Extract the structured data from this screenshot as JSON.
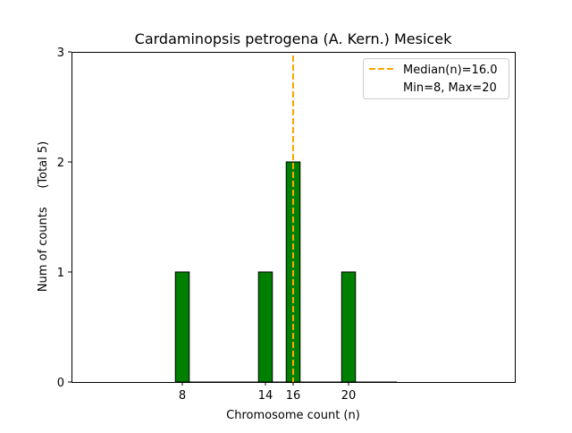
{
  "chart_data": {
    "type": "bar",
    "title": "Cardaminopsis petrogena (A. Kern.) Mesicek",
    "xlabel": "Chromosome count (n)",
    "ylabel": "Num of counts     (Total 5)",
    "xlim": [
      0,
      32
    ],
    "ylim": [
      0,
      3
    ],
    "xticks": [
      8,
      14,
      16,
      20
    ],
    "yticks": [
      0,
      1,
      2,
      3
    ],
    "bin_width": 1,
    "x": [
      8,
      9,
      10,
      11,
      12,
      13,
      14,
      15,
      16,
      17,
      18,
      19,
      20,
      21,
      22,
      23
    ],
    "values": [
      1,
      0,
      0,
      0,
      0,
      0,
      1,
      0,
      2,
      0,
      0,
      0,
      1,
      0,
      0,
      0
    ],
    "bar_color": "#008000",
    "median": 16.0,
    "median_color": "#FFA500",
    "legend": {
      "placement": "top-right",
      "entries": [
        "Median(n)=16.0",
        "Min=8, Max=20"
      ]
    }
  }
}
